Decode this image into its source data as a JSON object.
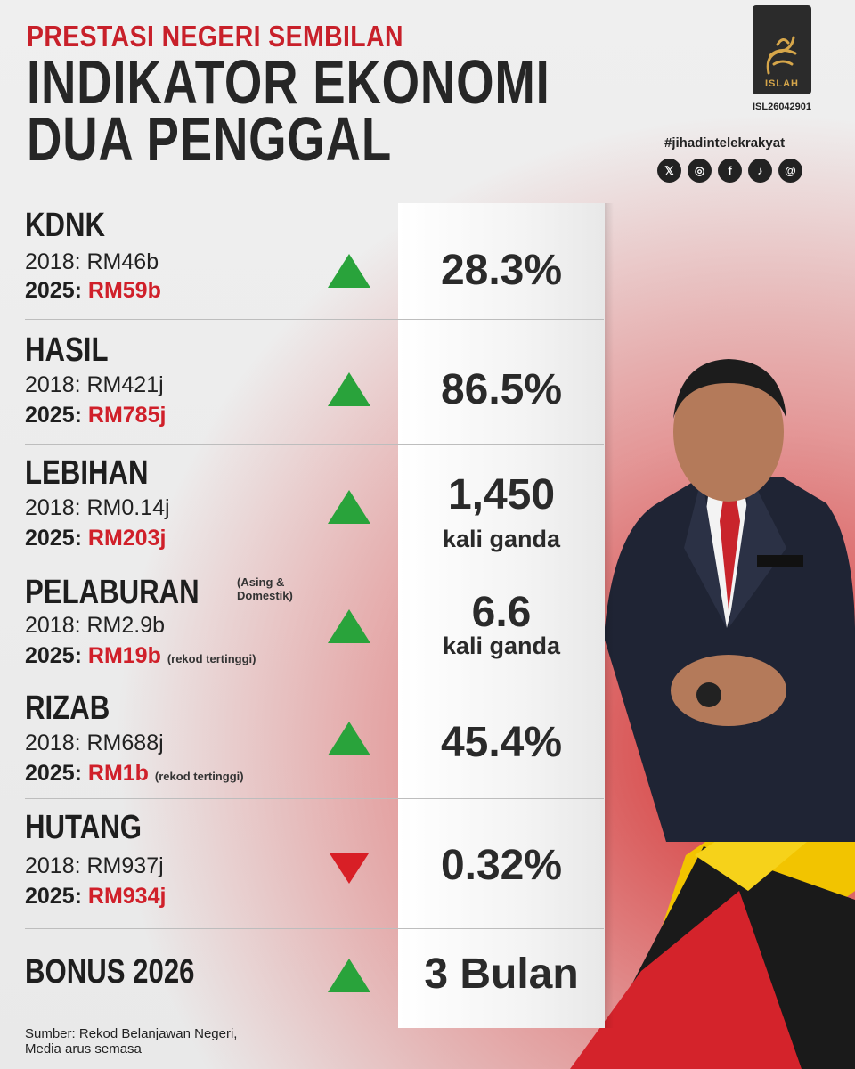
{
  "header": {
    "kicker": "PRESTASI NEGERI SEMBILAN",
    "title_line1": "INDIKATOR EKONOMI",
    "title_line2": "DUA PENGGAL"
  },
  "brand": {
    "logo_text": "ISLAH",
    "code": "ISL26042901",
    "hashtag": "#jihadintelekrakyat",
    "socials": [
      "x-icon",
      "instagram-icon",
      "facebook-icon",
      "tiktok-icon",
      "threads-icon"
    ]
  },
  "indicators": [
    {
      "label": "KDNK",
      "y2018": "2018: RM46b",
      "y2025_prefix": "2025: ",
      "y2025": "RM59b",
      "trend": "up",
      "value": "28.3%"
    },
    {
      "label": "HASIL",
      "y2018": "2018: RM421j",
      "y2025_prefix": "2025: ",
      "y2025": "RM785j",
      "trend": "up",
      "value": "86.5%"
    },
    {
      "label": "LEBIHAN",
      "y2018": "2018: RM0.14j",
      "y2025_prefix": "2025: ",
      "y2025": "RM203j",
      "trend": "up",
      "value": "1,450",
      "value_sub": "kali ganda"
    },
    {
      "label": "PELABURAN",
      "note": "(Asing & Domestik)",
      "note_l1": "(Asing &",
      "note_l2": "Domestik)",
      "y2018": "2018: RM2.9b",
      "y2025_prefix": "2025: ",
      "y2025": "RM19b",
      "record": "(rekod tertinggi)",
      "trend": "up",
      "value": "6.6",
      "value_sub": "kali ganda"
    },
    {
      "label": "RIZAB",
      "y2018": "2018: RM688j",
      "y2025_prefix": "2025: ",
      "y2025": "RM1b",
      "record": "(rekod tertinggi)",
      "trend": "up",
      "value": "45.4%"
    },
    {
      "label": "HUTANG",
      "y2018": "2018: RM937j",
      "y2025_prefix": "2025: ",
      "y2025": "RM934j",
      "trend": "down",
      "value": "0.32%"
    },
    {
      "label": "BONUS 2026",
      "trend": "up",
      "value": "3 Bulan"
    }
  ],
  "source": {
    "line1": "Sumber: Rekod Belanjawan Negeri,",
    "line2": "Media arus semasa"
  },
  "colors": {
    "accent_red": "#d0202a",
    "up_green": "#29a33b",
    "down_red": "#d81f26",
    "gold": "#d6a64a"
  }
}
